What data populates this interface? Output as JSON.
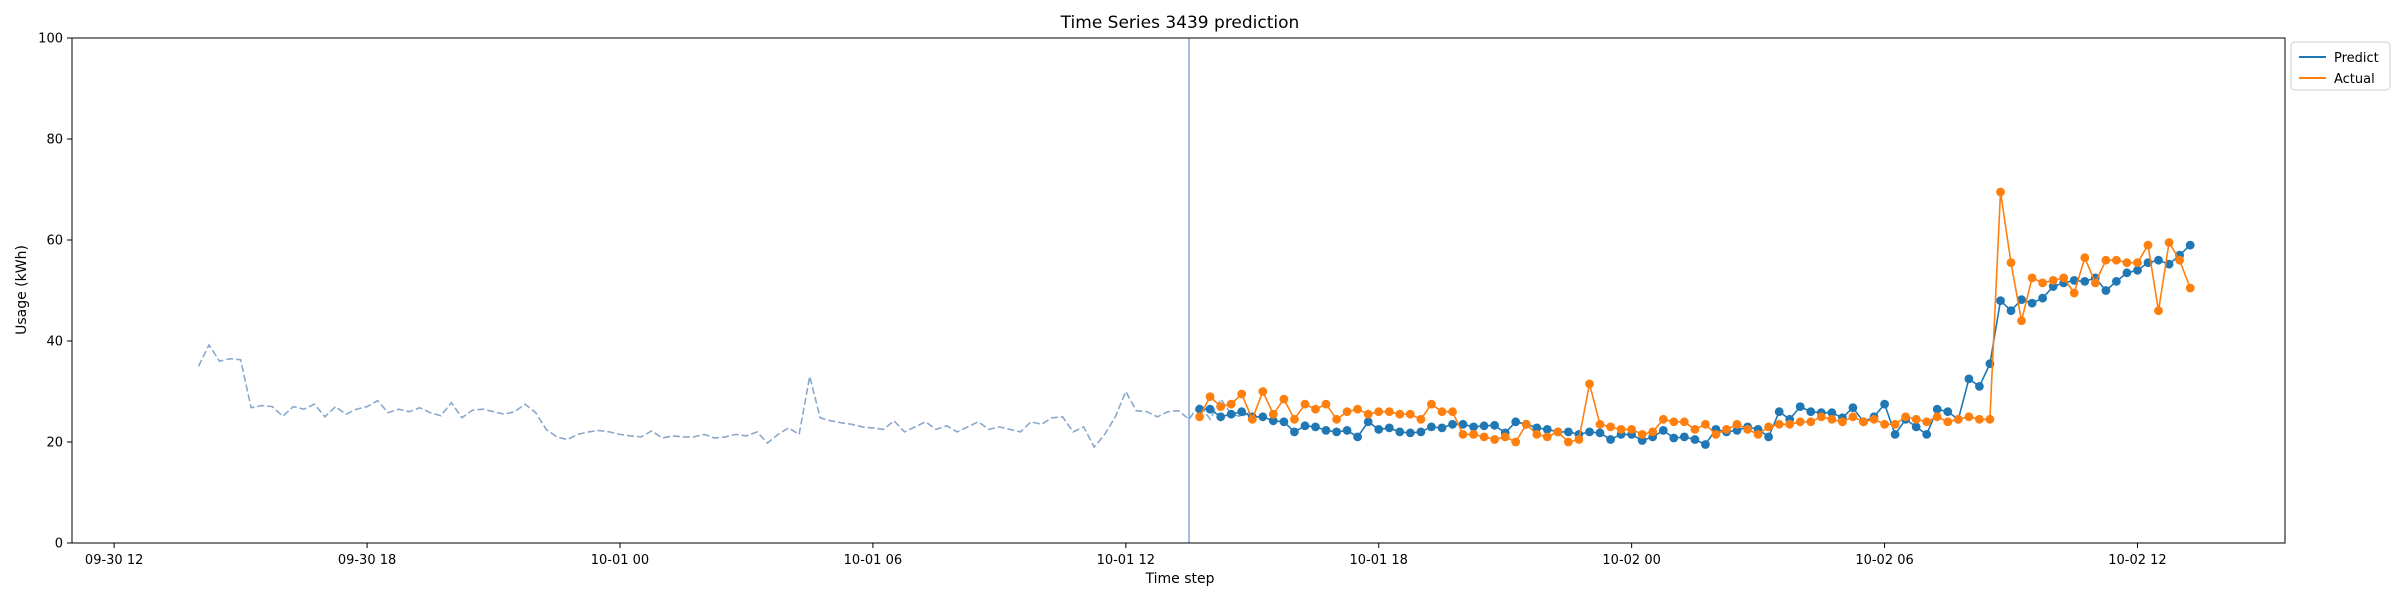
{
  "chart_data": {
    "type": "line",
    "title": "Time Series 3439 prediction",
    "xlabel": "Time step",
    "ylabel": "Usage (kWh)",
    "ylim": [
      0,
      100
    ],
    "yticks": [
      0,
      20,
      40,
      60,
      80,
      100
    ],
    "xlim": [
      "2022-09-30 11:00",
      "2022-10-02 15:30"
    ],
    "xticks": [
      {
        "t": "2022-09-30 12:00",
        "label": "09-30 12"
      },
      {
        "t": "2022-09-30 18:00",
        "label": "09-30 18"
      },
      {
        "t": "2022-10-01 00:00",
        "label": "10-01 00"
      },
      {
        "t": "2022-10-01 06:00",
        "label": "10-01 06"
      },
      {
        "t": "2022-10-01 12:00",
        "label": "10-01 12"
      },
      {
        "t": "2022-10-01 18:00",
        "label": "10-01 18"
      },
      {
        "t": "2022-10-02 00:00",
        "label": "10-02 00"
      },
      {
        "t": "2022-10-02 06:00",
        "label": "10-02 06"
      },
      {
        "t": "2022-10-02 12:00",
        "label": "10-02 12"
      }
    ],
    "forecast_start": "2022-10-01 13:30",
    "interval_minutes": 15,
    "history": {
      "start": "2022-09-30 14:00",
      "values": [
        35.0,
        39.2,
        36.0,
        36.5,
        36.3,
        26.8,
        27.2,
        27.0,
        25.1,
        27.0,
        26.5,
        27.5,
        25.0,
        27.0,
        25.5,
        26.5,
        27.0,
        28.2,
        25.8,
        26.5,
        26.0,
        26.8,
        25.8,
        25.2,
        27.8,
        24.8,
        26.3,
        26.5,
        26.0,
        25.5,
        26.0,
        27.5,
        25.8,
        22.5,
        21.0,
        20.5,
        21.5,
        22.0,
        22.3,
        22.0,
        21.5,
        21.2,
        21.0,
        22.2,
        20.8,
        21.2,
        21.0,
        21.0,
        21.5,
        20.8,
        21.0,
        21.5,
        21.2,
        22.0,
        19.8,
        21.5,
        22.8,
        21.5,
        33.0,
        24.8,
        24.2,
        23.8,
        23.5,
        23.0,
        22.8,
        22.5,
        24.2,
        22.0,
        23.0,
        24.0,
        22.5,
        23.2,
        22.0,
        23.0,
        24.0,
        22.5,
        23.0,
        22.5,
        22.0,
        24.0,
        23.5,
        24.8,
        25.0,
        22.0,
        23.0,
        19.0,
        21.5,
        25.0,
        30.0,
        26.2,
        26.0,
        25.0,
        26.0,
        26.2,
        24.5,
        27.5,
        24.5,
        28.5,
        25.5,
        25.0,
        26.2
      ]
    },
    "series": [
      {
        "name": "Predict",
        "color": "#1f77b4",
        "start": "2022-10-01 13:45",
        "values": [
          26.5,
          26.5,
          25.0,
          25.5,
          26.0,
          25.0,
          25.0,
          24.2,
          24.0,
          22.0,
          23.2,
          23.0,
          22.3,
          22.0,
          22.3,
          21.0,
          24.0,
          22.5,
          22.8,
          22.0,
          21.8,
          22.0,
          23.0,
          22.8,
          23.5,
          23.5,
          23.0,
          23.2,
          23.3,
          21.8,
          24.0,
          23.5,
          22.8,
          22.5,
          22.0,
          22.0,
          21.5,
          22.0,
          21.8,
          20.5,
          21.5,
          21.5,
          20.3,
          21.0,
          22.3,
          20.8,
          21.0,
          20.5,
          19.5,
          22.5,
          22.0,
          22.3,
          23.0,
          22.5,
          21.0,
          26.0,
          24.5,
          27.0,
          26.0,
          25.8,
          25.8,
          24.8,
          26.8,
          24.0,
          25.0,
          27.5,
          21.5,
          24.5,
          23.0,
          21.5,
          26.5,
          26.0,
          24.5,
          32.5,
          31.0,
          35.5,
          48.0,
          46.0,
          48.2,
          47.5,
          48.5,
          50.8,
          51.5,
          52.0,
          51.8,
          52.5,
          50.0,
          51.8,
          53.5,
          54.0,
          55.5,
          56.0,
          55.2,
          57.0,
          59.0
        ]
      },
      {
        "name": "Actual",
        "color": "#ff7f0e",
        "start": "2022-10-01 13:45",
        "values": [
          25.0,
          29.0,
          27.0,
          27.5,
          29.5,
          24.5,
          30.0,
          25.5,
          28.5,
          24.5,
          27.5,
          26.5,
          27.5,
          24.5,
          26.0,
          26.5,
          25.5,
          26.0,
          26.0,
          25.5,
          25.5,
          24.5,
          27.5,
          26.0,
          26.0,
          21.5,
          21.5,
          21.0,
          20.5,
          21.0,
          20.0,
          23.5,
          21.5,
          21.0,
          22.0,
          20.0,
          20.5,
          31.5,
          23.5,
          23.0,
          22.5,
          22.5,
          21.5,
          22.0,
          24.5,
          24.0,
          24.0,
          22.5,
          23.5,
          21.5,
          22.5,
          23.5,
          22.5,
          21.5,
          23.0,
          23.5,
          23.5,
          24.0,
          24.0,
          25.0,
          24.5,
          24.0,
          25.0,
          24.0,
          24.5,
          23.5,
          23.5,
          25.0,
          24.5,
          24.0,
          25.0,
          24.0,
          24.5,
          25.0,
          24.5,
          24.5,
          69.5,
          55.5,
          44.0,
          52.5,
          51.5,
          52.0,
          52.5,
          49.5,
          56.5,
          51.5,
          56.0,
          56.0,
          55.5,
          55.5,
          59.0,
          46.0,
          59.5,
          56.0,
          50.5
        ]
      }
    ],
    "legend": {
      "placement": "outside-top-right"
    },
    "grid": false
  }
}
